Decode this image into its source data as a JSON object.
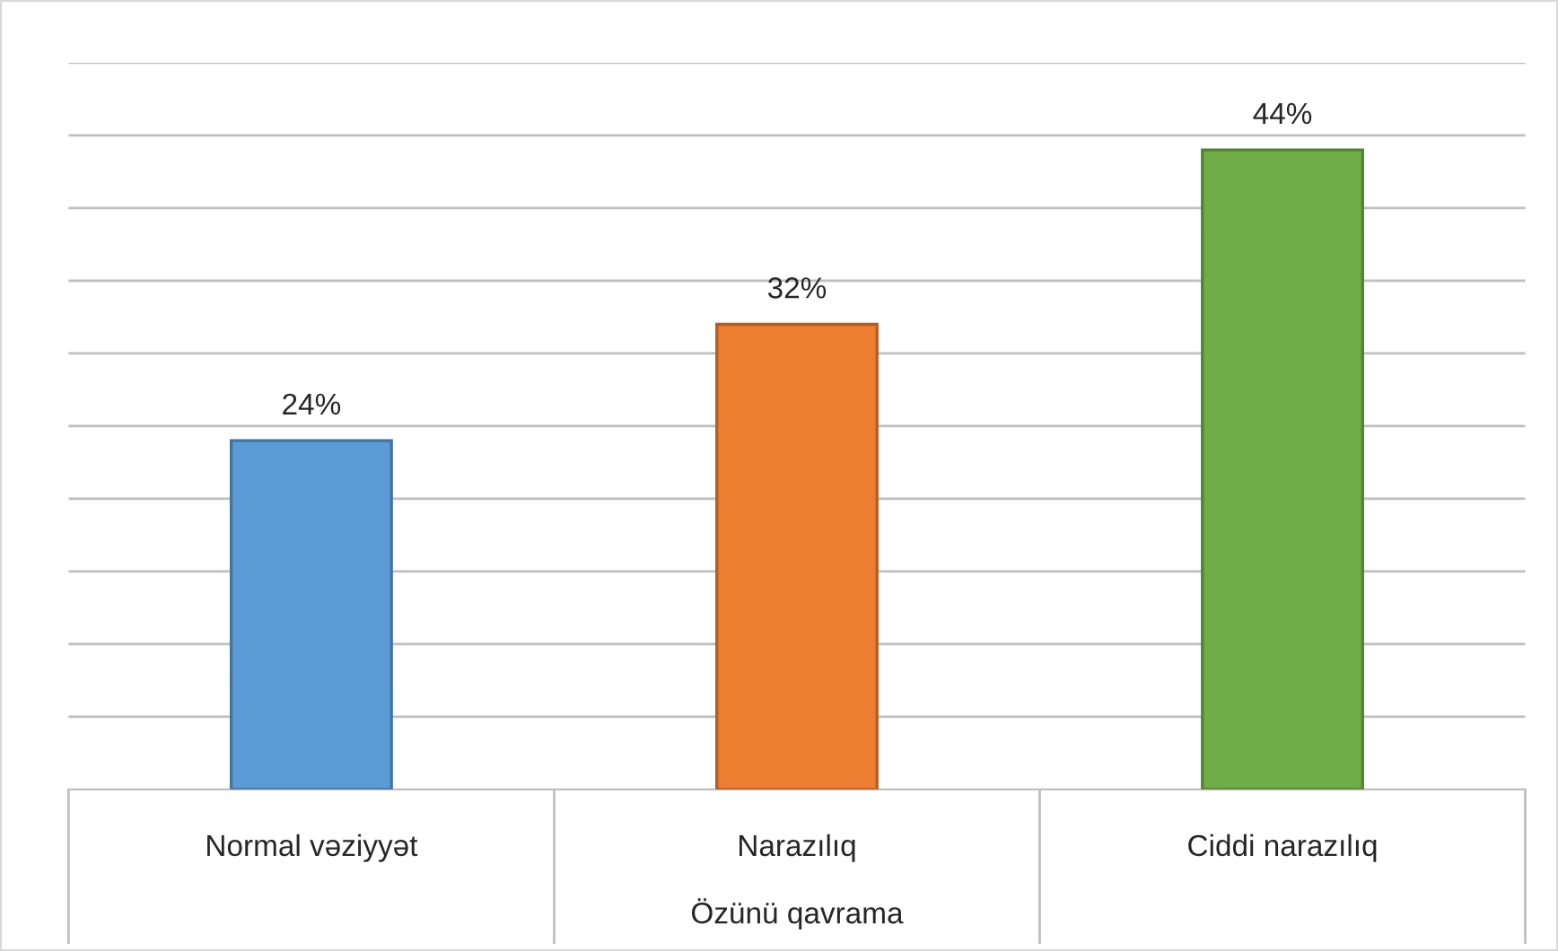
{
  "chart_data": {
    "type": "bar",
    "xlabel": "Özünü qavrama",
    "categories": [
      "Normal vəziyyət",
      "Narazılıq",
      "Ciddi narazılıq"
    ],
    "values": [
      24,
      32,
      44
    ],
    "colors": [
      "#5b9bd5",
      "#ed7d31",
      "#70ad47"
    ],
    "value_labels": [
      "24%",
      "32%",
      "44%"
    ],
    "ylim": [
      0,
      50
    ],
    "yticks": [
      {
        "value": 5,
        "label": null
      },
      {
        "value": 10,
        "label": null
      },
      {
        "value": 15,
        "label": null
      },
      {
        "value": 20,
        "label": null
      },
      {
        "value": 25,
        "label": null
      },
      {
        "value": 30,
        "label": null
      },
      {
        "value": 35,
        "label": null
      },
      {
        "value": 40,
        "label": null
      },
      {
        "value": 45,
        "label": null
      },
      {
        "value": 50,
        "label": null
      }
    ],
    "grid": "y",
    "tick_labels": "x"
  }
}
